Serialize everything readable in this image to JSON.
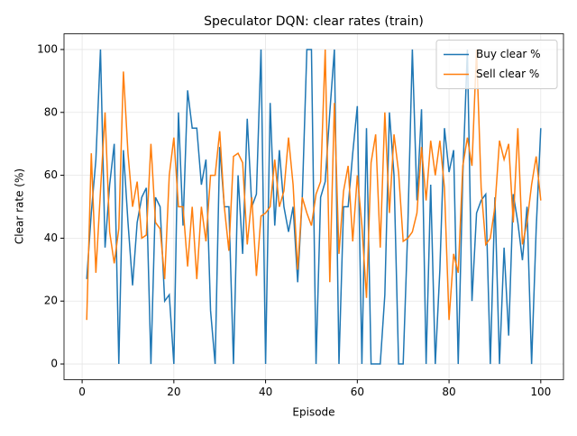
{
  "chart_data": {
    "type": "line",
    "title": "Speculator DQN: clear rates (train)",
    "x_label": "Episode",
    "y_label": "Clear rate (%)",
    "x": [
      1,
      2,
      3,
      4,
      5,
      6,
      7,
      8,
      9,
      10,
      11,
      12,
      13,
      14,
      15,
      16,
      17,
      18,
      19,
      20,
      21,
      22,
      23,
      24,
      25,
      26,
      27,
      28,
      29,
      30,
      31,
      32,
      33,
      34,
      35,
      36,
      37,
      38,
      39,
      40,
      41,
      42,
      43,
      44,
      45,
      46,
      47,
      48,
      49,
      50,
      51,
      52,
      53,
      54,
      55,
      56,
      57,
      58,
      59,
      60,
      61,
      62,
      63,
      64,
      65,
      66,
      67,
      68,
      69,
      70,
      71,
      72,
      73,
      74,
      75,
      76,
      77,
      78,
      79,
      80,
      81,
      82,
      83,
      84,
      85,
      86,
      87,
      88,
      89,
      90,
      91,
      92,
      93,
      94,
      95,
      96,
      97,
      98,
      99,
      100
    ],
    "series": [
      {
        "name": "Buy clear %",
        "color": "#1f77b4",
        "values": [
          27,
          48,
          65,
          100,
          37,
          57,
          70,
          0,
          68,
          45,
          25,
          45,
          53,
          56,
          0,
          53,
          50,
          20,
          22,
          0,
          80,
          44,
          87,
          75,
          75,
          57,
          65,
          17,
          0,
          69,
          50,
          50,
          0,
          60,
          35,
          78,
          50,
          54,
          100,
          0,
          83,
          44,
          68,
          50,
          42,
          50,
          26,
          53,
          100,
          100,
          0,
          53,
          58,
          80,
          100,
          0,
          50,
          50,
          67,
          82,
          0,
          75,
          0,
          0,
          0,
          22,
          80,
          60,
          0,
          0,
          43,
          100,
          52,
          81,
          0,
          57,
          0,
          30,
          75,
          61,
          68,
          0,
          60,
          100,
          20,
          48,
          52,
          54,
          0,
          53,
          0,
          37,
          9,
          54,
          45,
          33,
          50,
          0,
          43,
          75
        ]
      },
      {
        "name": "Sell clear %",
        "color": "#ff7f0e",
        "values": [
          14,
          67,
          29,
          55,
          80,
          42,
          32,
          43,
          93,
          67,
          50,
          58,
          40,
          41,
          70,
          45,
          43,
          27,
          60,
          72,
          50,
          50,
          31,
          50,
          27,
          50,
          39,
          60,
          60,
          74,
          50,
          36,
          66,
          67,
          64,
          38,
          53,
          28,
          47,
          48,
          50,
          65,
          50,
          55,
          72,
          57,
          30,
          53,
          48,
          44,
          54,
          58,
          100,
          26,
          83,
          35,
          55,
          63,
          39,
          60,
          44,
          21,
          64,
          73,
          37,
          80,
          48,
          73,
          61,
          39,
          40,
          42,
          48,
          69,
          52,
          71,
          60,
          71,
          56,
          14,
          35,
          29,
          63,
          72,
          63,
          100,
          56,
          38,
          40,
          50,
          71,
          65,
          70,
          45,
          75,
          38,
          45,
          57,
          66,
          52
        ]
      }
    ],
    "xlim": [
      -3.95,
      104.95
    ],
    "xticks": [
      0,
      20,
      40,
      60,
      80,
      100
    ],
    "ylim": [
      -5,
      105
    ],
    "yticks": [
      0,
      20,
      40,
      60,
      80,
      100
    ],
    "grid": true,
    "legend": "upper right"
  }
}
